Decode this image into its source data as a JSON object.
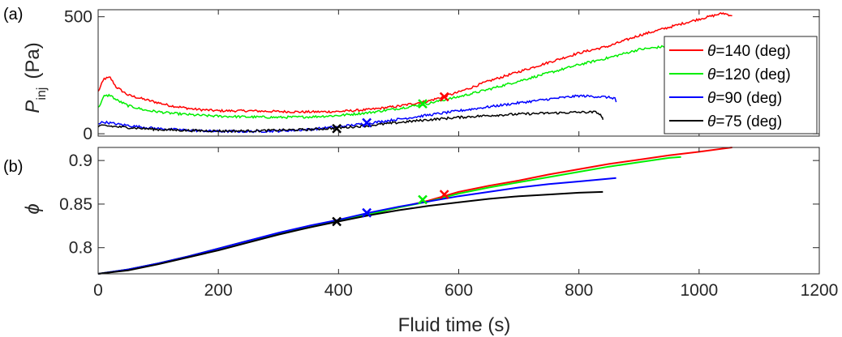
{
  "figure": {
    "xlabel": "Fluid time (s)",
    "x_ticks": [
      0,
      200,
      400,
      600,
      800,
      1000,
      1200
    ],
    "xlim": [
      0,
      1200
    ]
  },
  "colors": {
    "theta_140": "#ff0000",
    "theta_120": "#00ee00",
    "theta_90": "#0000ff",
    "theta_75": "#000000",
    "axis": "#262626"
  },
  "chart_data": [
    {
      "type": "line",
      "panel_label": "(a)",
      "ylabel_main": "P",
      "ylabel_sub": "inj",
      "ylabel_unit": "(Pa)",
      "xlim": [
        0,
        1200
      ],
      "ylim": [
        -10,
        530
      ],
      "y_ticks": [
        0,
        500
      ],
      "grid": false,
      "legend": {
        "placement": "right",
        "entries": [
          "θ=140 (deg)",
          "θ=120 (deg)",
          "θ=90 (deg)",
          "θ=75 (deg)"
        ]
      },
      "series": [
        {
          "name": "θ=140 (deg)",
          "color_key": "theta_140",
          "x": [
            0,
            10,
            20,
            30,
            50,
            80,
            120,
            160,
            200,
            250,
            300,
            350,
            400,
            450,
            500,
            550,
            600,
            650,
            700,
            750,
            800,
            850,
            900,
            950,
            1000,
            1040,
            1055
          ],
          "y": [
            180,
            235,
            240,
            200,
            165,
            145,
            120,
            105,
            98,
            98,
            95,
            93,
            95,
            103,
            118,
            140,
            178,
            225,
            265,
            305,
            345,
            375,
            420,
            455,
            490,
            515,
            505
          ],
          "marker": {
            "x": 576,
            "y": 158
          }
        },
        {
          "name": "θ=120 (deg)",
          "color_key": "theta_120",
          "x": [
            0,
            10,
            20,
            30,
            50,
            80,
            120,
            160,
            200,
            250,
            300,
            350,
            400,
            450,
            500,
            550,
            600,
            650,
            700,
            750,
            800,
            850,
            900,
            950,
            970
          ],
          "y": [
            110,
            160,
            165,
            145,
            120,
            100,
            88,
            80,
            75,
            72,
            70,
            72,
            78,
            90,
            108,
            130,
            158,
            190,
            225,
            260,
            295,
            325,
            360,
            375,
            380
          ],
          "marker": {
            "x": 540,
            "y": 128
          }
        },
        {
          "name": "θ=90 (deg)",
          "color_key": "theta_90",
          "x": [
            0,
            10,
            30,
            60,
            100,
            150,
            200,
            250,
            300,
            350,
            400,
            450,
            500,
            550,
            600,
            650,
            700,
            750,
            800,
            840,
            860,
            862
          ],
          "y": [
            45,
            50,
            42,
            32,
            22,
            15,
            10,
            10,
            12,
            18,
            30,
            45,
            62,
            80,
            98,
            115,
            132,
            148,
            162,
            158,
            152,
            135
          ],
          "marker": {
            "x": 447,
            "y": 47
          }
        },
        {
          "name": "θ=75 (deg)",
          "color_key": "theta_75",
          "x": [
            0,
            10,
            30,
            60,
            100,
            150,
            200,
            250,
            300,
            350,
            400,
            450,
            500,
            550,
            600,
            650,
            700,
            750,
            800,
            830,
            838,
            840
          ],
          "y": [
            30,
            35,
            30,
            25,
            18,
            14,
            12,
            12,
            15,
            18,
            25,
            35,
            48,
            60,
            70,
            78,
            84,
            88,
            92,
            92,
            75,
            60
          ],
          "marker": {
            "x": 397,
            "y": 22
          }
        }
      ]
    },
    {
      "type": "line",
      "panel_label": "(b)",
      "ylabel": "ϕ",
      "xlim": [
        0,
        1200
      ],
      "ylim": [
        0.77,
        0.915
      ],
      "y_ticks": [
        0.8,
        0.85,
        0.9
      ],
      "y_tick_labels": [
        "0.8",
        "0.85",
        "0.9"
      ],
      "grid": false,
      "series": [
        {
          "name": "θ=140 (deg)",
          "color_key": "theta_140",
          "x": [
            0,
            50,
            100,
            150,
            200,
            250,
            300,
            350,
            400,
            450,
            500,
            550,
            600,
            650,
            700,
            750,
            800,
            850,
            900,
            950,
            1000,
            1055
          ],
          "y": [
            0.77,
            0.775,
            0.782,
            0.79,
            0.799,
            0.808,
            0.816,
            0.823,
            0.831,
            0.838,
            0.846,
            0.854,
            0.864,
            0.871,
            0.877,
            0.884,
            0.89,
            0.896,
            0.901,
            0.906,
            0.91,
            0.915
          ],
          "marker": {
            "x": 576,
            "y": 0.861
          }
        },
        {
          "name": "θ=120 (deg)",
          "color_key": "theta_120",
          "x": [
            0,
            50,
            100,
            150,
            200,
            250,
            300,
            350,
            400,
            450,
            500,
            550,
            600,
            650,
            700,
            750,
            800,
            850,
            900,
            950,
            970
          ],
          "y": [
            0.77,
            0.775,
            0.782,
            0.79,
            0.799,
            0.808,
            0.816,
            0.823,
            0.831,
            0.838,
            0.846,
            0.853,
            0.862,
            0.869,
            0.875,
            0.881,
            0.887,
            0.893,
            0.898,
            0.903,
            0.904
          ],
          "marker": {
            "x": 540,
            "y": 0.855
          }
        },
        {
          "name": "θ=90 (deg)",
          "color_key": "theta_90",
          "x": [
            0,
            50,
            100,
            150,
            200,
            250,
            300,
            350,
            400,
            450,
            500,
            550,
            600,
            650,
            700,
            750,
            800,
            862
          ],
          "y": [
            0.77,
            0.775,
            0.782,
            0.79,
            0.799,
            0.808,
            0.817,
            0.825,
            0.832,
            0.84,
            0.847,
            0.853,
            0.859,
            0.864,
            0.869,
            0.873,
            0.876,
            0.88
          ],
          "marker": {
            "x": 447,
            "y": 0.84
          }
        },
        {
          "name": "θ=75 (deg)",
          "color_key": "theta_75",
          "x": [
            0,
            50,
            100,
            150,
            200,
            250,
            300,
            350,
            400,
            450,
            500,
            550,
            600,
            650,
            700,
            750,
            800,
            840
          ],
          "y": [
            0.77,
            0.774,
            0.781,
            0.789,
            0.797,
            0.806,
            0.815,
            0.823,
            0.83,
            0.837,
            0.843,
            0.848,
            0.852,
            0.856,
            0.859,
            0.861,
            0.863,
            0.864
          ],
          "marker": {
            "x": 397,
            "y": 0.83
          }
        }
      ]
    }
  ]
}
